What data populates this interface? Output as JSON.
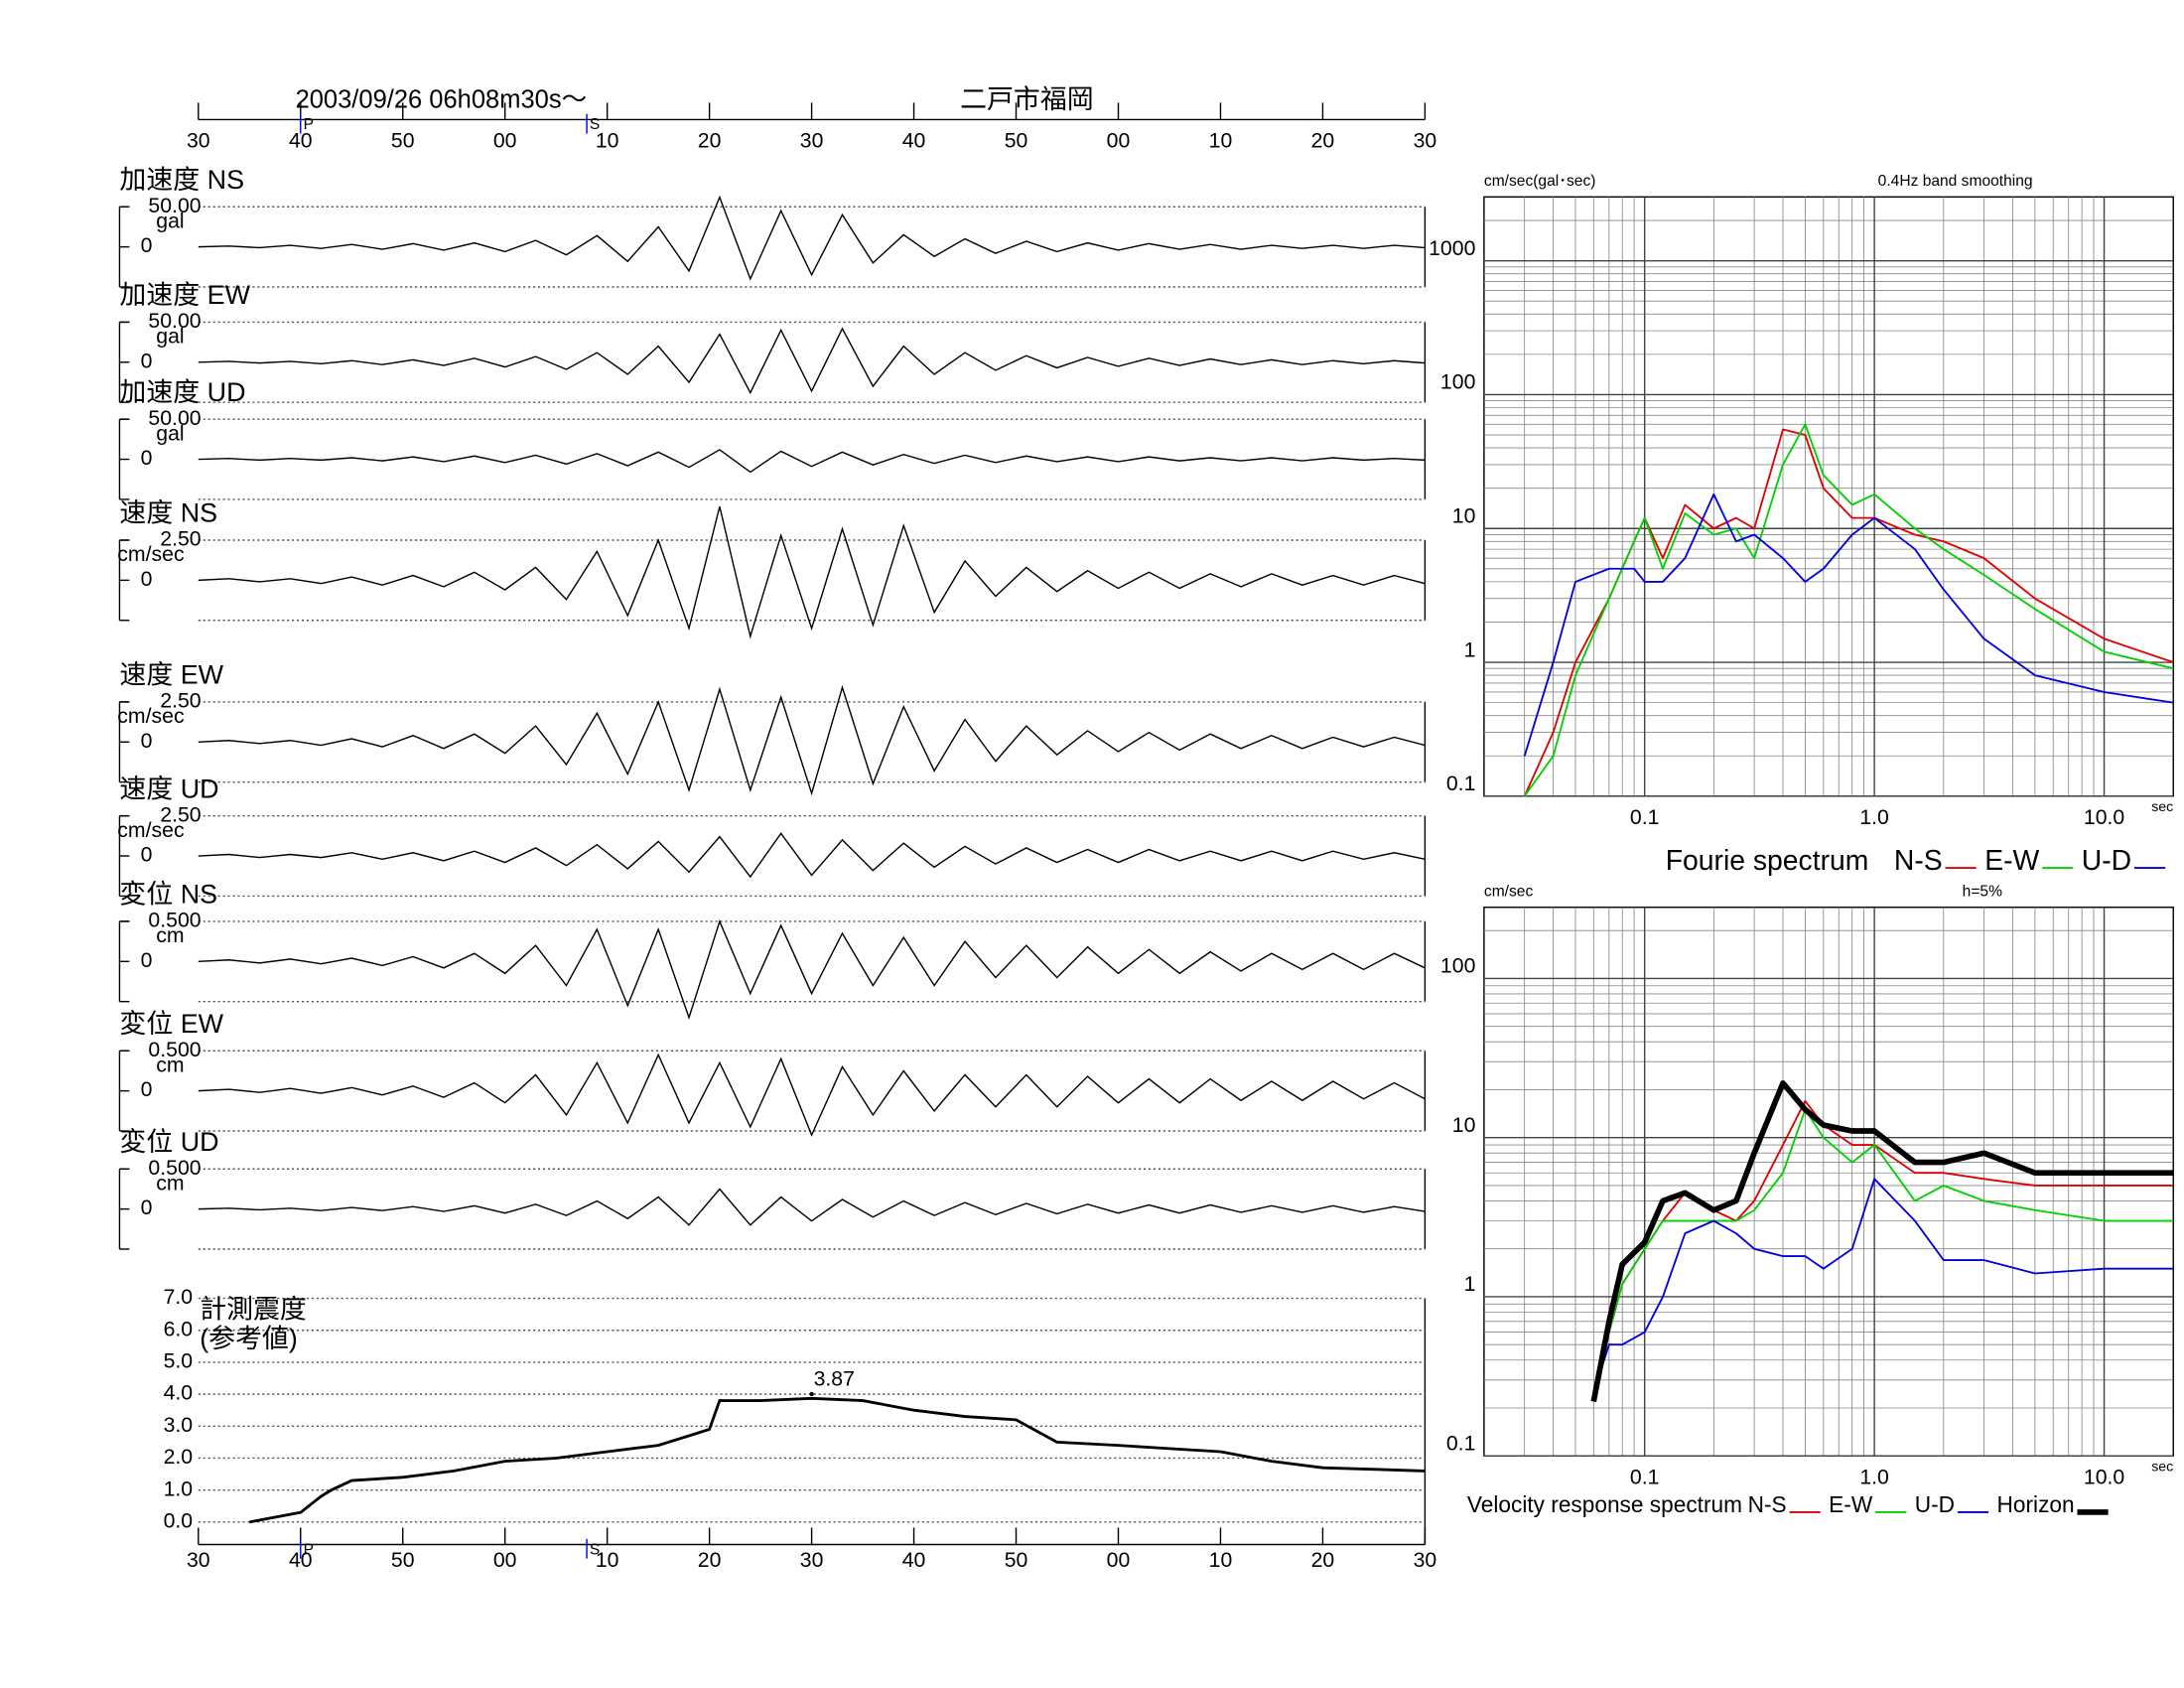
{
  "chart_data": [
    {
      "type": "waveform",
      "title": "2003/09/26  06h08m30s〜",
      "station": "二戸市福岡",
      "xlim": [
        0,
        120
      ],
      "xticks": [
        {
          "value": 0,
          "label": "30"
        },
        {
          "value": 10,
          "label": "40"
        },
        {
          "value": 20,
          "label": "50"
        },
        {
          "value": 30,
          "label": "00"
        },
        {
          "value": 40,
          "label": "10"
        },
        {
          "value": 50,
          "label": "20"
        },
        {
          "value": 60,
          "label": "30"
        },
        {
          "value": 70,
          "label": "40"
        },
        {
          "value": 80,
          "label": "50"
        },
        {
          "value": 90,
          "label": "00"
        },
        {
          "value": 100,
          "label": "10"
        },
        {
          "value": 110,
          "label": "20"
        },
        {
          "value": 120,
          "label": "30"
        }
      ],
      "markers": [
        {
          "label": "P",
          "x": 10
        },
        {
          "label": "S",
          "x": 38
        }
      ],
      "x": [
        0,
        3,
        6,
        9,
        12,
        15,
        18,
        21,
        24,
        27,
        30,
        33,
        36,
        39,
        42,
        45,
        48,
        51,
        54,
        57,
        60,
        63,
        66,
        69,
        72,
        75,
        78,
        81,
        84,
        87,
        90,
        93,
        96,
        99,
        102,
        105,
        108,
        111,
        114,
        117,
        120
      ],
      "panels": [
        {
          "label": "加速度 NS",
          "unit": "gal",
          "ylim": [
            -50,
            50
          ],
          "yticks": [
            0,
            {
              "value": 50,
              "label": "50.00"
            }
          ],
          "values": [
            0,
            1,
            -1,
            2,
            -2,
            3,
            -3,
            4,
            -4,
            5,
            -6,
            8,
            -10,
            14,
            -18,
            25,
            -30,
            62,
            -40,
            45,
            -35,
            40,
            -20,
            15,
            -12,
            10,
            -8,
            7,
            -6,
            5,
            -4,
            4,
            -3,
            3,
            -3,
            2,
            -2,
            2,
            -2,
            2,
            -1
          ]
        },
        {
          "label": "加速度 EW",
          "unit": "gal",
          "ylim": [
            -50,
            50
          ],
          "yticks": [
            0,
            {
              "value": 50,
              "label": "50.00"
            }
          ],
          "values": [
            0,
            1,
            -1,
            1,
            -2,
            2,
            -3,
            3,
            -4,
            5,
            -6,
            7,
            -9,
            12,
            -15,
            20,
            -25,
            35,
            -38,
            40,
            -36,
            42,
            -30,
            20,
            -15,
            12,
            -10,
            8,
            -7,
            6,
            -5,
            5,
            -4,
            4,
            -3,
            3,
            -3,
            2,
            -2,
            2,
            -1
          ]
        },
        {
          "label": "加速度 UD",
          "unit": "gal",
          "ylim": [
            -50,
            50
          ],
          "yticks": [
            0,
            {
              "value": 50,
              "label": "50.00"
            }
          ],
          "values": [
            0,
            1,
            -1,
            1,
            -1,
            2,
            -2,
            3,
            -3,
            4,
            -4,
            5,
            -6,
            7,
            -8,
            9,
            -10,
            12,
            -16,
            10,
            -9,
            9,
            -7,
            6,
            -5,
            5,
            -4,
            4,
            -3,
            3,
            -3,
            3,
            -2,
            2,
            -2,
            2,
            -2,
            2,
            -1,
            1,
            -1
          ]
        },
        {
          "label": "速度 NS",
          "unit": "cm/sec",
          "ylim": [
            -2.5,
            2.5
          ],
          "yticks": [
            0,
            {
              "value": 2.5,
              "label": "2.50"
            }
          ],
          "values": [
            0,
            0.1,
            -0.1,
            0.1,
            -0.2,
            0.2,
            -0.3,
            0.3,
            -0.4,
            0.5,
            -0.6,
            0.8,
            -1.2,
            1.8,
            -2.2,
            2.5,
            -3,
            4.6,
            -3.5,
            2.8,
            -3,
            3.2,
            -2.8,
            3.4,
            -2,
            1.2,
            -1,
            0.8,
            -0.7,
            0.6,
            -0.5,
            0.5,
            -0.5,
            0.4,
            -0.4,
            0.4,
            -0.3,
            0.3,
            -0.3,
            0.3,
            -0.2
          ]
        },
        {
          "label": "速度 EW",
          "unit": "cm/sec",
          "ylim": [
            -2.5,
            2.5
          ],
          "yticks": [
            0,
            {
              "value": 2.5,
              "label": "2.50"
            }
          ],
          "values": [
            0,
            0.1,
            -0.1,
            0.1,
            -0.2,
            0.2,
            -0.3,
            0.4,
            -0.4,
            0.5,
            -0.7,
            1,
            -1.4,
            1.8,
            -2,
            2.5,
            -3,
            3.3,
            -3,
            2.8,
            -3.2,
            3.4,
            -2.6,
            2.2,
            -1.8,
            1.4,
            -1.2,
            1,
            -0.8,
            0.7,
            -0.6,
            0.6,
            -0.5,
            0.5,
            -0.4,
            0.4,
            -0.4,
            0.3,
            -0.3,
            0.3,
            -0.2
          ]
        },
        {
          "label": "速度 UD",
          "unit": "cm/sec",
          "ylim": [
            -2.5,
            2.5
          ],
          "yticks": [
            0,
            {
              "value": 2.5,
              "label": "2.50"
            }
          ],
          "values": [
            0,
            0.1,
            -0.1,
            0.1,
            -0.1,
            0.2,
            -0.2,
            0.2,
            -0.3,
            0.3,
            -0.4,
            0.5,
            -0.6,
            0.7,
            -0.8,
            0.9,
            -1,
            1.2,
            -1.3,
            1.4,
            -1.2,
            1,
            -0.9,
            0.8,
            -0.7,
            0.6,
            -0.5,
            0.5,
            -0.4,
            0.4,
            -0.4,
            0.4,
            -0.3,
            0.3,
            -0.3,
            0.3,
            -0.3,
            0.3,
            -0.2,
            0.2,
            -0.2
          ]
        },
        {
          "label": "変位 NS",
          "unit": "cm",
          "ylim": [
            -0.5,
            0.5
          ],
          "yticks": [
            0,
            {
              "value": 0.5,
              "label": "0.500"
            }
          ],
          "values": [
            0,
            0.02,
            -0.02,
            0.03,
            -0.03,
            0.04,
            -0.05,
            0.06,
            -0.08,
            0.1,
            -0.15,
            0.2,
            -0.3,
            0.4,
            -0.55,
            0.4,
            -0.7,
            0.5,
            -0.4,
            0.45,
            -0.4,
            0.35,
            -0.3,
            0.3,
            -0.3,
            0.25,
            -0.2,
            0.2,
            -0.2,
            0.18,
            -0.15,
            0.15,
            -0.15,
            0.12,
            -0.12,
            0.1,
            -0.1,
            0.1,
            -0.1,
            0.1,
            -0.08
          ]
        },
        {
          "label": "変位 EW",
          "unit": "cm",
          "ylim": [
            -0.5,
            0.5
          ],
          "yticks": [
            0,
            {
              "value": 0.5,
              "label": "0.500"
            }
          ],
          "values": [
            0,
            0.02,
            -0.02,
            0.03,
            -0.03,
            0.04,
            -0.05,
            0.06,
            -0.08,
            0.1,
            -0.15,
            0.2,
            -0.3,
            0.35,
            -0.4,
            0.45,
            -0.4,
            0.35,
            -0.45,
            0.4,
            -0.55,
            0.3,
            -0.3,
            0.25,
            -0.25,
            0.2,
            -0.2,
            0.2,
            -0.2,
            0.18,
            -0.15,
            0.15,
            -0.15,
            0.15,
            -0.12,
            0.12,
            -0.12,
            0.12,
            -0.1,
            0.1,
            -0.1
          ]
        },
        {
          "label": "変位 UD",
          "unit": "cm",
          "ylim": [
            -0.5,
            0.5
          ],
          "yticks": [
            0,
            {
              "value": 0.5,
              "label": "0.500"
            }
          ],
          "values": [
            0,
            0.01,
            -0.01,
            0.01,
            -0.02,
            0.02,
            -0.02,
            0.03,
            -0.03,
            0.04,
            -0.05,
            0.06,
            -0.08,
            0.1,
            -0.12,
            0.15,
            -0.2,
            0.25,
            -0.2,
            0.15,
            -0.15,
            0.12,
            -0.1,
            0.1,
            -0.08,
            0.08,
            -0.07,
            0.07,
            -0.06,
            0.06,
            -0.05,
            0.05,
            -0.05,
            0.05,
            -0.04,
            0.04,
            -0.04,
            0.04,
            -0.04,
            0.03,
            -0.03
          ]
        }
      ]
    },
    {
      "type": "intensity",
      "label": [
        "計測震度",
        "(参考値)"
      ],
      "color": "#000000",
      "xlim": [
        0,
        120
      ],
      "xticks": [
        {
          "value": 0,
          "label": "30"
        },
        {
          "value": 10,
          "label": "40"
        },
        {
          "value": 20,
          "label": "50"
        },
        {
          "value": 30,
          "label": "00"
        },
        {
          "value": 40,
          "label": "10"
        },
        {
          "value": 50,
          "label": "20"
        },
        {
          "value": 60,
          "label": "30"
        },
        {
          "value": 70,
          "label": "40"
        },
        {
          "value": 80,
          "label": "50"
        },
        {
          "value": 90,
          "label": "00"
        },
        {
          "value": 100,
          "label": "10"
        },
        {
          "value": 110,
          "label": "20"
        },
        {
          "value": 120,
          "label": "30"
        }
      ],
      "markers": [
        {
          "label": "P",
          "x": 10
        },
        {
          "label": "S",
          "x": 38
        }
      ],
      "ylim": [
        0,
        7
      ],
      "yticks": [
        {
          "value": 0,
          "label": "0.0"
        },
        {
          "value": 1,
          "label": "1.0"
        },
        {
          "value": 2,
          "label": "2.0"
        },
        {
          "value": 3,
          "label": "3.0"
        },
        {
          "value": 4,
          "label": "4.0"
        },
        {
          "value": 5,
          "label": "5.0"
        },
        {
          "value": 6,
          "label": "6.0"
        },
        {
          "value": 7,
          "label": "7.0"
        }
      ],
      "x": [
        5,
        10,
        12,
        13,
        15,
        20,
        25,
        30,
        35,
        40,
        45,
        48,
        50,
        51,
        55,
        60,
        65,
        70,
        75,
        80,
        84,
        90,
        95,
        100,
        105,
        110,
        120
      ],
      "values": [
        0,
        0.3,
        0.8,
        1.0,
        1.3,
        1.4,
        1.6,
        1.9,
        2.0,
        2.2,
        2.4,
        2.7,
        2.9,
        3.8,
        3.8,
        3.87,
        3.8,
        3.5,
        3.3,
        3.2,
        2.5,
        2.4,
        2.3,
        2.2,
        1.9,
        1.7,
        1.6
      ],
      "peak": {
        "x": 60,
        "value": 3.87
      }
    },
    {
      "type": "loglog",
      "title": "Fourie spectrum",
      "ylabel": "cm/sec(gal･sec)",
      "note": "0.4Hz band smoothing",
      "xlabel": "sec",
      "xlim": [
        0.02,
        20
      ],
      "ylim": [
        0.1,
        3000
      ],
      "log_x": true,
      "log_y": true,
      "grid": true,
      "xticks": [
        0.1,
        {
          "value": 1,
          "label": "1.0"
        },
        {
          "value": 10,
          "label": "10.0"
        }
      ],
      "yticks": [
        0.1,
        1,
        10,
        100,
        1000
      ],
      "x": [
        0.03,
        0.04,
        0.05,
        0.07,
        0.09,
        0.1,
        0.12,
        0.15,
        0.2,
        0.25,
        0.3,
        0.4,
        0.5,
        0.6,
        0.8,
        1.0,
        1.5,
        2,
        3,
        5,
        10,
        20
      ],
      "series": [
        {
          "name": "N-S",
          "color": "#e00000",
          "width": 1.3,
          "values": [
            0.1,
            0.3,
            1,
            3,
            8,
            12,
            6,
            15,
            10,
            12,
            10,
            55,
            50,
            20,
            12,
            12,
            9,
            8,
            6,
            3,
            1.5,
            1
          ]
        },
        {
          "name": "E-W",
          "color": "#00d000",
          "width": 1.3,
          "values": [
            0.1,
            0.2,
            0.8,
            3,
            8,
            12,
            5,
            13,
            9,
            10,
            6,
            30,
            60,
            25,
            15,
            18,
            10,
            7,
            4.5,
            2.5,
            1.2,
            0.9
          ]
        },
        {
          "name": "U-D",
          "color": "#0000e0",
          "width": 1.3,
          "values": [
            0.2,
            1,
            4,
            5,
            5,
            4,
            4,
            6,
            18,
            8,
            9,
            6,
            4,
            5,
            9,
            12,
            7,
            3.5,
            1.5,
            0.8,
            0.6,
            0.5
          ]
        }
      ]
    },
    {
      "type": "loglog",
      "title": "Velocity response spectrum",
      "ylabel": "cm/sec",
      "note": "h=5%",
      "xlabel": "sec",
      "xlim": [
        0.02,
        20
      ],
      "ylim": [
        0.1,
        280
      ],
      "log_x": true,
      "log_y": true,
      "grid": true,
      "xticks": [
        0.1,
        {
          "value": 1,
          "label": "1.0"
        },
        {
          "value": 10,
          "label": "10.0"
        }
      ],
      "yticks": [
        0.1,
        1,
        10,
        100
      ],
      "x": [
        0.06,
        0.07,
        0.08,
        0.1,
        0.12,
        0.15,
        0.2,
        0.25,
        0.3,
        0.4,
        0.5,
        0.6,
        0.8,
        1.0,
        1.5,
        2,
        3,
        5,
        10,
        20
      ],
      "series": [
        {
          "name": "N-S",
          "color": "#e00000",
          "width": 1.3,
          "values": [
            0.22,
            0.6,
            1.2,
            2,
            3,
            4.5,
            3.5,
            3,
            4,
            9,
            17,
            12,
            9,
            9,
            6,
            6,
            5.5,
            5,
            5,
            5
          ]
        },
        {
          "name": "E-W",
          "color": "#00d000",
          "width": 1.3,
          "values": [
            0.22,
            0.6,
            1.2,
            2,
            3,
            3,
            3,
            3,
            3.5,
            6,
            15,
            10,
            7,
            9,
            4,
            5,
            4,
            3.5,
            3,
            3
          ]
        },
        {
          "name": "U-D",
          "color": "#0000e0",
          "width": 1.3,
          "values": [
            0.25,
            0.5,
            0.5,
            0.6,
            1,
            2.5,
            3,
            2.5,
            2,
            1.8,
            1.8,
            1.5,
            2,
            5.5,
            3,
            1.7,
            1.7,
            1.4,
            1.5,
            1.5
          ]
        },
        {
          "name": "Horizon",
          "color": "#000000",
          "width": 4,
          "values": [
            0.22,
            0.7,
            1.6,
            2.2,
            4,
            4.5,
            3.5,
            4,
            8,
            22,
            15,
            12,
            11,
            11,
            7,
            7,
            8,
            6,
            6,
            6
          ]
        }
      ]
    }
  ]
}
